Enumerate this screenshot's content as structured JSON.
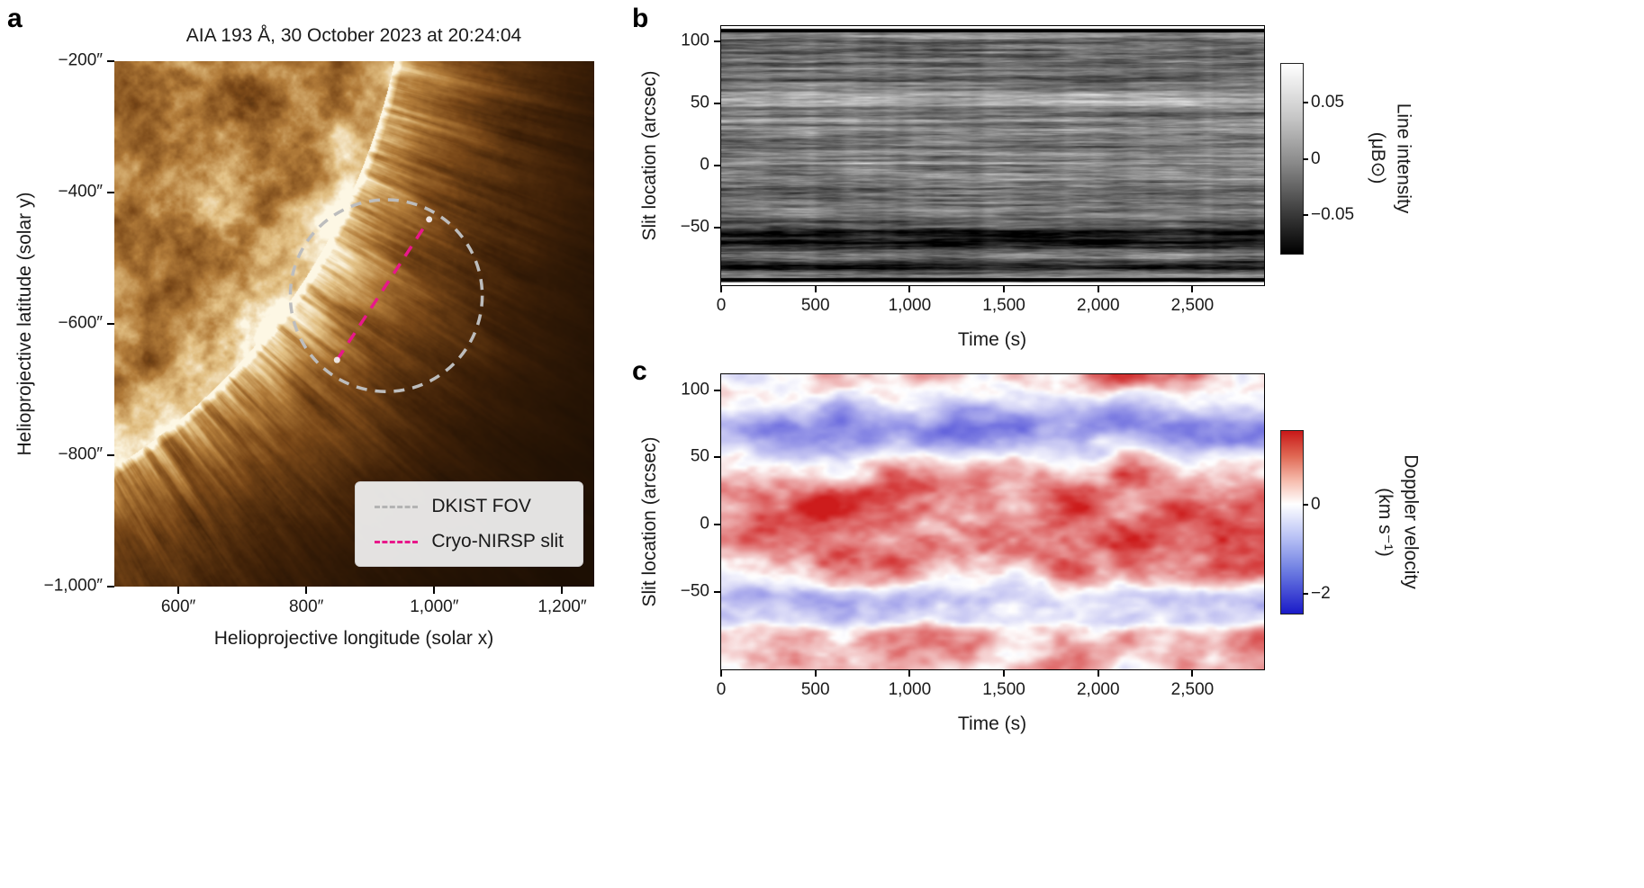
{
  "figure": {
    "background": "#ffffff"
  },
  "panels": {
    "a": {
      "label": "a",
      "title": "AIA 193 Å, 30 October 2023 at 20:24:04",
      "xlabel": "Helioprojective longitude (solar x)",
      "ylabel": "Helioprojective latitude (solar y)",
      "legend": {
        "items": [
          {
            "label": "DKIST FOV",
            "color": "#b3b3b3",
            "style": "dashed"
          },
          {
            "label": "Cryo-NIRSP slit",
            "color": "#e8178a",
            "style": "dashed"
          }
        ]
      }
    },
    "b": {
      "label": "b"
    },
    "c": {
      "label": "c"
    }
  },
  "chart_data": [
    {
      "type": "heatmap",
      "panel": "a",
      "title": "AIA 193 Å, 30 October 2023 at 20:24:04",
      "description": "SDO/AIA 193 Å EUV image of the solar corona off the limb, gold/sepia colormap; bright mottled active regions on disk (upper left), radial coronal plumes off limb (lower right)",
      "xlabel": "Helioprojective longitude (solar x)",
      "ylabel": "Helioprojective latitude (solar y)",
      "units": "arcsec",
      "xlim": [
        500,
        1250
      ],
      "ylim": [
        -1000,
        -200
      ],
      "xticks": [
        600,
        800,
        1000,
        1200
      ],
      "xtick_labels": [
        "600″",
        "800″",
        "1,000″",
        "1,200″"
      ],
      "yticks": [
        -200,
        -400,
        -600,
        -800,
        -1000
      ],
      "ytick_labels": [
        "−200″",
        "−400″",
        "−600″",
        "−800″",
        "−1,000″"
      ],
      "solar_limb_radius_arcsec": 958,
      "colormap": "AIA 193 gold/sepia",
      "annotations": [
        {
          "name": "DKIST FOV",
          "shape": "circle",
          "style": "dashed",
          "color": "#bdbdbd",
          "center": [
            925,
            -557
          ],
          "radius": 150
        },
        {
          "name": "Cryo-NIRSP slit",
          "shape": "line",
          "style": "dashed",
          "color": "#e8178a",
          "from": [
            848,
            -655
          ],
          "to": [
            992,
            -441
          ]
        }
      ]
    },
    {
      "type": "heatmap",
      "panel": "b",
      "description": "Time–distance map of Cryo-NIRSP line intensity along the slit; grayscale horizontal striations with dark band near −60 arcsec",
      "xlabel": "Time (s)",
      "ylabel": "Slit location (arcsec)",
      "xlim": [
        0,
        2880
      ],
      "ylim": [
        -96,
        112
      ],
      "xticks": [
        0,
        500,
        1000,
        1500,
        2000,
        2500
      ],
      "xtick_labels": [
        "0",
        "500",
        "1,000",
        "1,500",
        "2,000",
        "2,500"
      ],
      "yticks": [
        100,
        50,
        0,
        -50
      ],
      "ytick_labels": [
        "100",
        "50",
        "0",
        "−50"
      ],
      "colorbar": {
        "label_line1": "Line intensity",
        "label_line2": "(μB⊙)",
        "lim": [
          -0.085,
          0.085
        ],
        "ticks": [
          0.05,
          0,
          -0.05
        ],
        "tick_labels": [
          "0.05",
          "0",
          "−0.05"
        ],
        "colormap": "grayscale white→black"
      }
    },
    {
      "type": "heatmap",
      "panel": "c",
      "description": "Time–distance map of Doppler velocity along the slit; mostly red (redshift) with blue bands near +75 arcsec and −55 arcsec",
      "xlabel": "Time (s)",
      "ylabel": "Slit location (arcsec)",
      "xlim": [
        0,
        2880
      ],
      "ylim": [
        -108,
        112
      ],
      "xticks": [
        0,
        500,
        1000,
        1500,
        2000,
        2500
      ],
      "xtick_labels": [
        "0",
        "500",
        "1,000",
        "1,500",
        "2,000",
        "2,500"
      ],
      "yticks": [
        100,
        50,
        0,
        -50
      ],
      "ytick_labels": [
        "100",
        "50",
        "0",
        "−50"
      ],
      "colorbar": {
        "label_line1": "Doppler velocity",
        "label_line2": "(km s⁻¹)",
        "lim": [
          -2.45,
          1.65
        ],
        "ticks": [
          0,
          -2
        ],
        "tick_labels": [
          "0",
          "−2"
        ],
        "colormap": "diverging red–white–blue"
      }
    }
  ]
}
